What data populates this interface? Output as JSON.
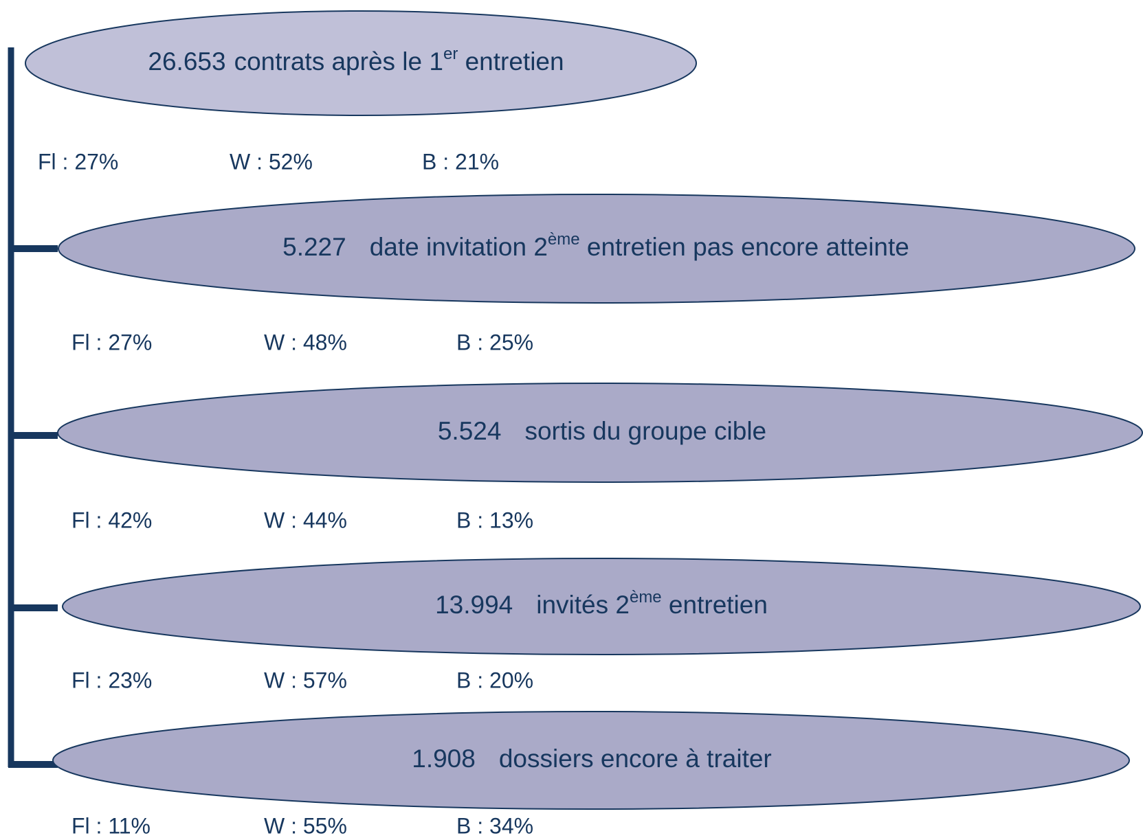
{
  "nodes": [
    {
      "count": "26.653",
      "label": "contrats après le 1",
      "sup": "er",
      "rest": " entretien",
      "breakdown": [
        "Fl : 27%",
        "W : 52%",
        "B : 21%"
      ]
    },
    {
      "count": "5.227",
      "label": "date invitation 2",
      "sup": "ème",
      "rest": " entretien pas encore atteinte",
      "breakdown": [
        "Fl : 27%",
        "W : 48%",
        "B : 25%"
      ]
    },
    {
      "count": "5.524",
      "label": "sortis du groupe cible",
      "breakdown": [
        "Fl : 42%",
        "W : 44%",
        "B : 13%"
      ]
    },
    {
      "count": "13.994",
      "label": "invités 2",
      "sup": "ème",
      "rest": " entretien",
      "breakdown": [
        "Fl : 23%",
        "W : 57%",
        "B : 20%"
      ]
    },
    {
      "count": "1.908",
      "label": "dossiers encore à traiter",
      "breakdown": [
        "Fl : 11%",
        "W : 55%",
        "B : 34%"
      ]
    }
  ]
}
